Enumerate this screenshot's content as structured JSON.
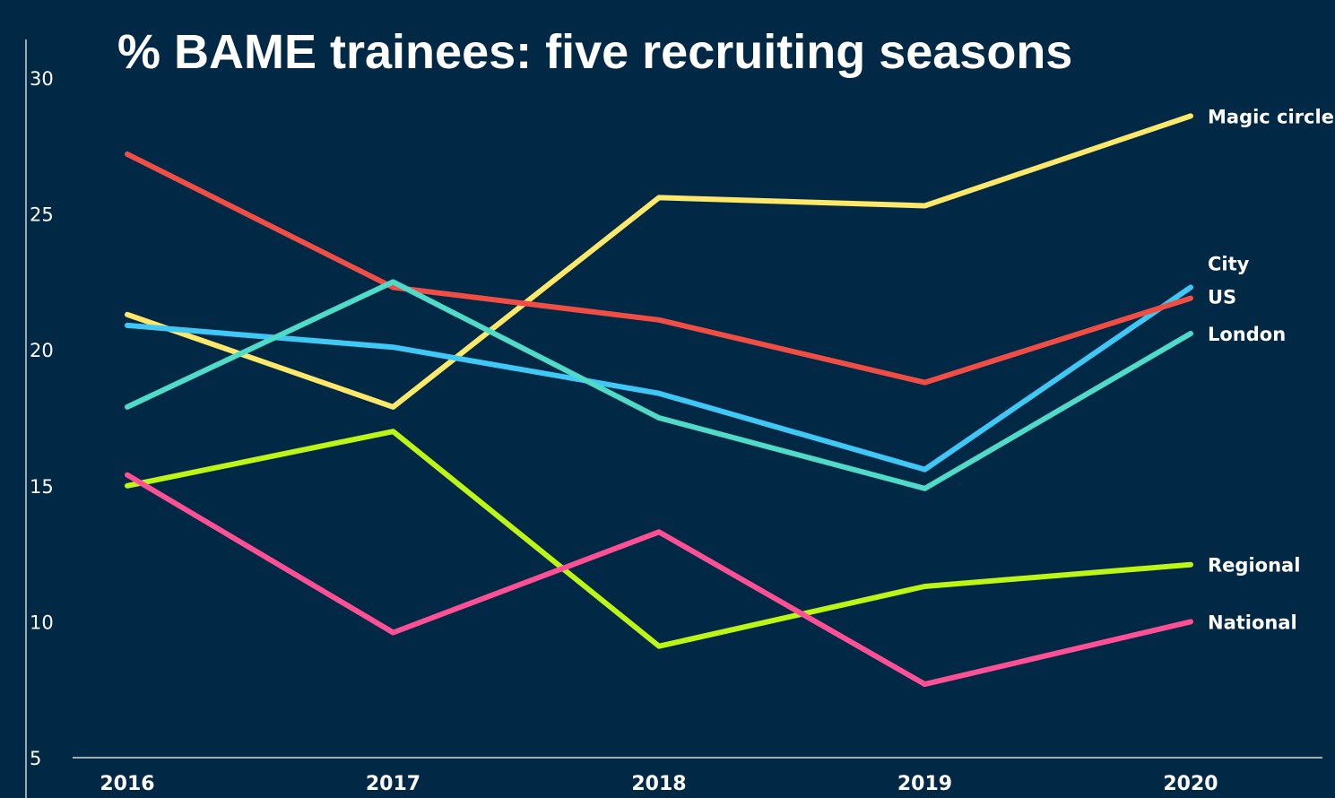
{
  "chart_data": {
    "type": "line",
    "title": "% BAME trainees: five recruiting seasons",
    "xlabel": "",
    "ylabel": "",
    "x": [
      "2016",
      "2017",
      "2018",
      "2019",
      "2020"
    ],
    "ylim": [
      5,
      30
    ],
    "yticks": [
      "5",
      "10",
      "15",
      "20",
      "25",
      "30"
    ],
    "grid": false,
    "legend": "direct labels at line ends",
    "background": "#012845",
    "series": [
      {
        "name": "Magic circle",
        "color": "#fde86a",
        "values": [
          21.3,
          17.9,
          25.6,
          25.3,
          28.6
        ]
      },
      {
        "name": "City",
        "color": "#3fc8f6",
        "values": [
          20.9,
          20.1,
          18.4,
          15.6,
          22.3
        ]
      },
      {
        "name": "US",
        "color": "#f04e45",
        "values": [
          27.2,
          22.3,
          21.1,
          18.8,
          21.9
        ]
      },
      {
        "name": "London",
        "color": "#4fdbc8",
        "values": [
          17.9,
          22.5,
          17.5,
          14.9,
          20.6
        ]
      },
      {
        "name": "Regional",
        "color": "#bdf516",
        "values": [
          15.0,
          17.0,
          9.1,
          11.3,
          12.1
        ]
      },
      {
        "name": "National",
        "color": "#ff5095",
        "values": [
          15.4,
          9.6,
          13.3,
          7.7,
          10.0
        ]
      }
    ]
  }
}
